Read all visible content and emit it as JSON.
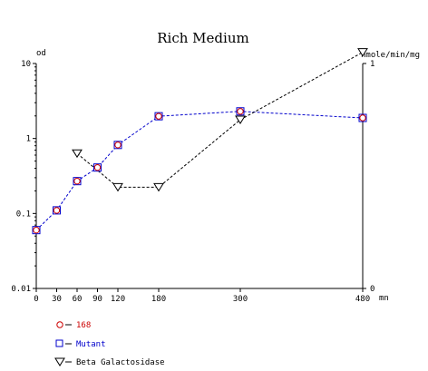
{
  "chart_data": {
    "type": "line",
    "title": "Rich Medium",
    "xlabel": "mn",
    "ylabel_left": "od",
    "ylabel_right": "nmole/min/mg",
    "x_ticks": [
      "0",
      "30",
      "60",
      "90",
      "120",
      "180",
      "300",
      "480"
    ],
    "x_tick_values": [
      0,
      30,
      60,
      90,
      120,
      180,
      300,
      480
    ],
    "xlim": [
      0,
      480
    ],
    "y_left_scale": "log",
    "y_left_ticks": [
      "0.01",
      "0.1",
      "1",
      "10"
    ],
    "y_left_tick_values": [
      0.01,
      0.1,
      1,
      10
    ],
    "ylim_left": [
      0.01,
      10
    ],
    "y_right_scale": "linear",
    "y_right_ticks": [
      "0",
      "1"
    ],
    "y_right_tick_values": [
      0,
      1
    ],
    "ylim_right": [
      0,
      1
    ],
    "grid": false,
    "series": [
      {
        "name": "168",
        "axis": "left",
        "marker": "circle",
        "color": "#cc0000",
        "line_color": "#0000cc",
        "x": [
          0,
          30,
          60,
          90,
          120,
          180,
          300,
          480
        ],
        "values": [
          0.06,
          0.11,
          0.27,
          0.41,
          0.82,
          1.98,
          2.3,
          1.88
        ]
      },
      {
        "name": "Mutant",
        "axis": "left",
        "marker": "square",
        "color": "#0000cc",
        "line_color": "#0000cc",
        "x": [
          0,
          30,
          60,
          90,
          120,
          180,
          300,
          480
        ],
        "values": [
          0.06,
          0.11,
          0.27,
          0.41,
          0.82,
          1.98,
          2.3,
          1.88
        ]
      },
      {
        "name": "Beta Galactosidase",
        "axis": "right",
        "marker": "triangle-down",
        "color": "#000000",
        "line_color": "#000000",
        "x": [
          60,
          120,
          180,
          300,
          480
        ],
        "values": [
          0.6,
          0.45,
          0.45,
          0.75,
          1.05
        ]
      }
    ],
    "legend": {
      "position": "bottom-left",
      "entries": [
        "168",
        "Mutant",
        "Beta Galactosidase"
      ]
    }
  }
}
